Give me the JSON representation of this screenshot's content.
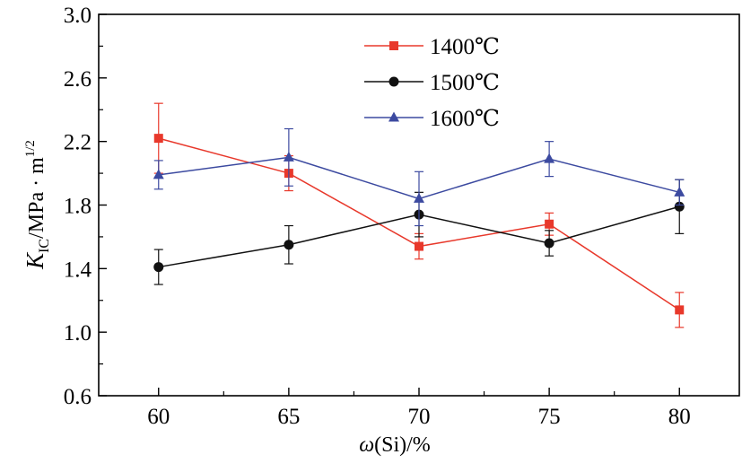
{
  "chart_data": {
    "type": "line",
    "x_label_parts": [
      "ω",
      "(Si)/%"
    ],
    "y_label_parts": [
      "K",
      "IC",
      "/MPa · m",
      "1/2"
    ],
    "x_ticks": [
      60,
      65,
      70,
      75,
      80
    ],
    "y_ticks": [
      "0.6",
      "1.0",
      "1.4",
      "1.8",
      "2.2",
      "2.6",
      "3.0"
    ],
    "xlim": [
      57.7,
      82.3
    ],
    "ylim": [
      0.6,
      3.0
    ],
    "grid": false,
    "legend_position": "top-center",
    "x": [
      60,
      65,
      70,
      75,
      80
    ],
    "series": [
      {
        "name": "1400℃",
        "color": "#e8382b",
        "marker": "square",
        "values": [
          2.22,
          2.0,
          1.54,
          1.68,
          1.14
        ],
        "error": [
          0.22,
          0.11,
          0.08,
          0.07,
          0.11
        ]
      },
      {
        "name": "1500℃",
        "color": "#111111",
        "marker": "circle",
        "values": [
          1.41,
          1.55,
          1.74,
          1.56,
          1.79
        ],
        "error": [
          0.11,
          0.12,
          0.14,
          0.08,
          0.17
        ]
      },
      {
        "name": "1600℃",
        "color": "#3c4aa0",
        "marker": "triangle",
        "values": [
          1.99,
          2.1,
          1.84,
          2.09,
          1.88
        ],
        "error": [
          0.09,
          0.18,
          0.17,
          0.11,
          0.08
        ]
      }
    ]
  }
}
